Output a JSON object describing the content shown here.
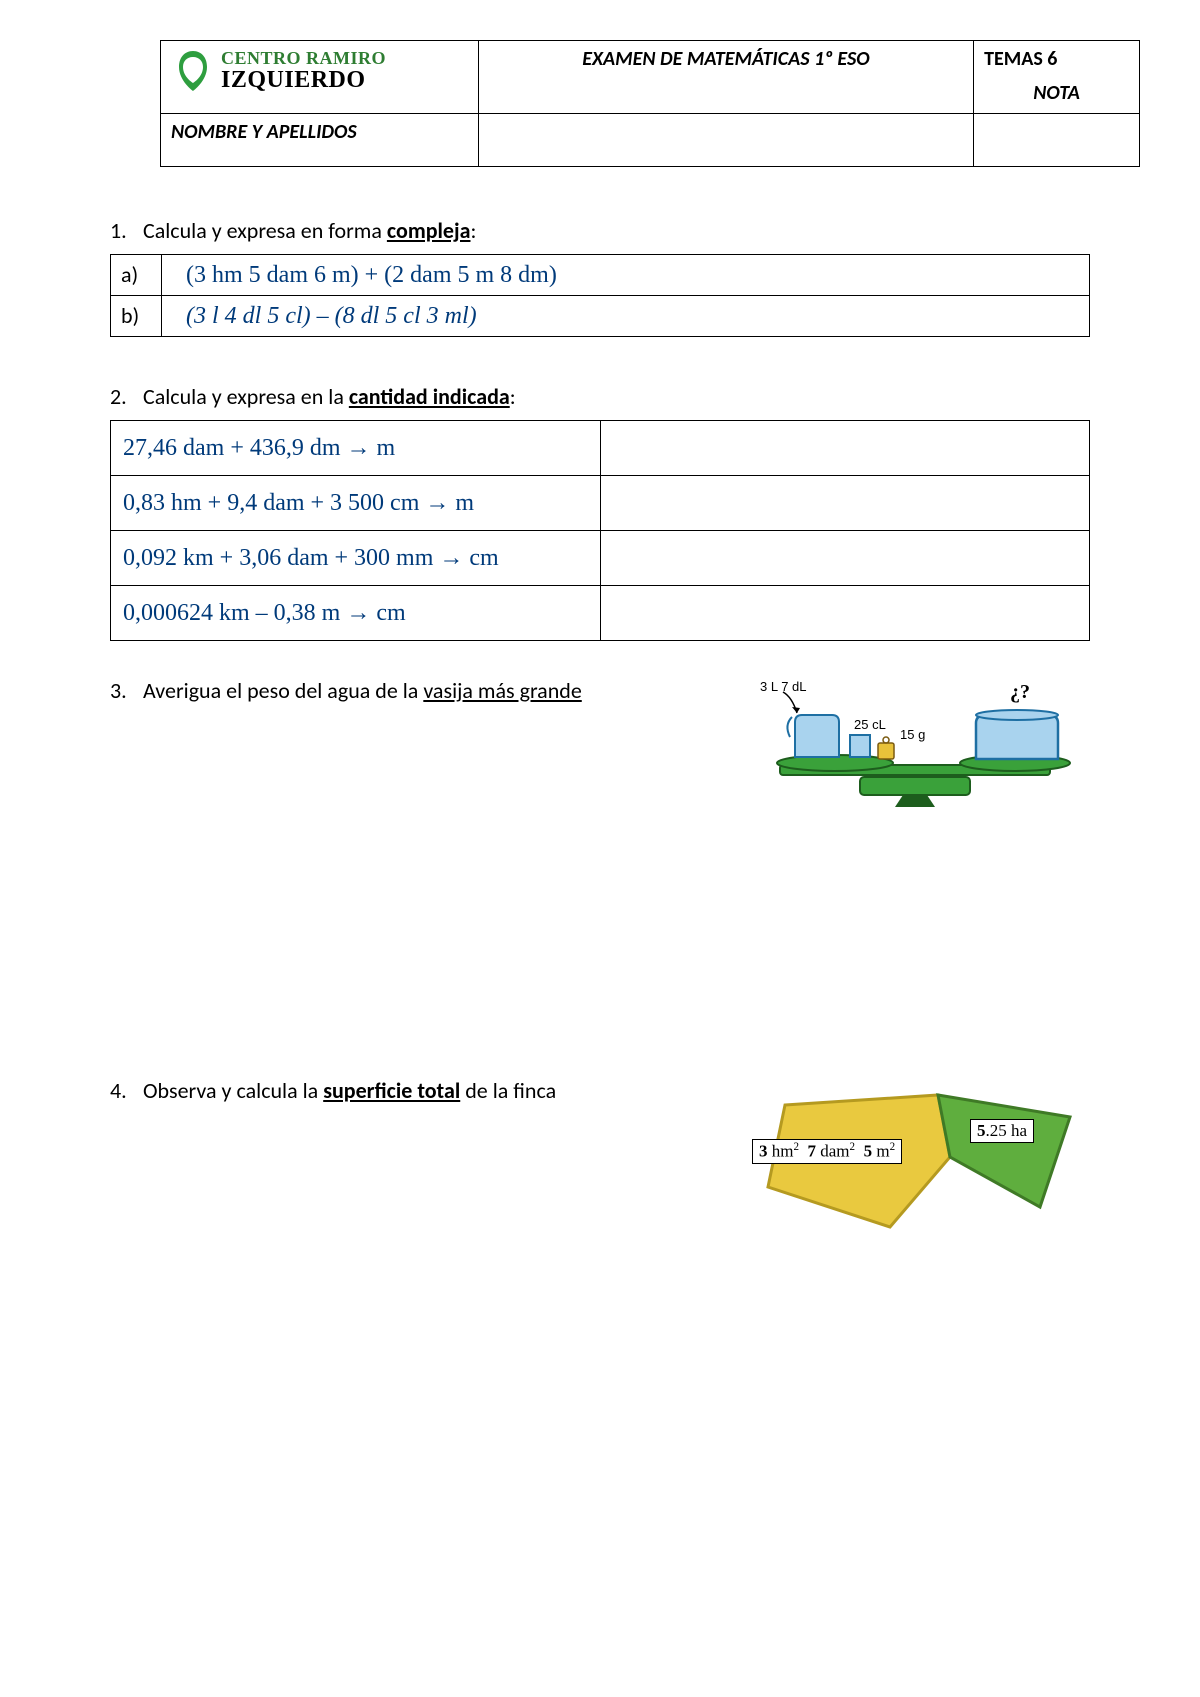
{
  "header": {
    "logo_line1": "CENTRO RAMIRO",
    "logo_line2": "IZQUIERDO",
    "exam_title": "EXAMEN DE MATEMÁTICAS   1º ESO",
    "topic": "TEMAS 6",
    "nota": "NOTA",
    "name_label": "NOMBRE Y APELLIDOS",
    "logo_green": "#2e7d32"
  },
  "q1": {
    "number": "1.",
    "prompt_pre": "Calcula y expresa en forma ",
    "prompt_bold": "compleja",
    "prompt_post": ":",
    "rows": [
      {
        "label": "a)",
        "expr": "(3 hm  5 dam  6 m) + (2 dam  5 m  8 dm)"
      },
      {
        "label": "b)",
        "expr": "(3 l  4 dl  5 cl) – (8 dl  5 cl  3 ml)"
      }
    ],
    "math_color": "#003a7a"
  },
  "q2": {
    "number": "2.",
    "prompt_pre": "Calcula y expresa en la ",
    "prompt_bold": "cantidad indicada",
    "prompt_post": ":",
    "rows": [
      "27,46 dam + 436,9 dm → m",
      "0,83 hm + 9,4 dam + 3 500 cm → m",
      "0,092 km + 3,06 dam + 300 mm → cm",
      "0,000624 km – 0,38 m → cm"
    ],
    "math_color": "#003a7a"
  },
  "q3": {
    "number": "3.",
    "prompt_pre": "Averigua el peso del agua de la ",
    "prompt_u": "vasija más grande",
    "labels": {
      "jug": "3 L  7 dL",
      "cup": "25 cL",
      "weight": "15 g",
      "unknown": "¿?"
    },
    "colors": {
      "water": "#a9d3ee",
      "jug_outline": "#1e6fa3",
      "scale": "#3aa13a",
      "scale_dark": "#1d5d1d",
      "weight_fill": "#e8c23a"
    }
  },
  "q4": {
    "number": "4.",
    "prompt_pre": "Observa y calcula la ",
    "prompt_bold": "superficie total",
    "prompt_post": " de la finca",
    "left_area_html": "<b>3</b> hm<sup>2</sup>&nbsp;&nbsp;<b>7</b> dam<sup>2</sup>&nbsp;&nbsp;<b>5</b> m<sup>2</sup>",
    "right_area_html": "<b>5</b>.25 ha",
    "colors": {
      "yellow_fill": "#e9c93f",
      "yellow_stroke": "#b59a20",
      "green_fill": "#5fae3e",
      "green_stroke": "#3f7a26"
    }
  }
}
